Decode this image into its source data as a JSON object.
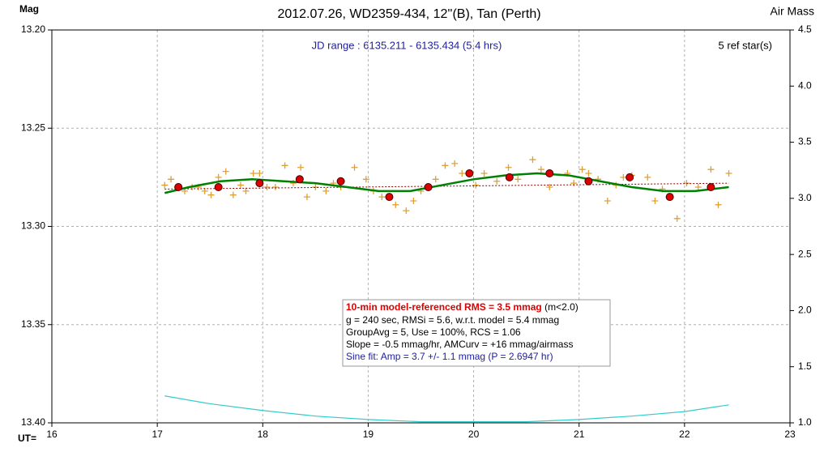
{
  "chart_data": {
    "type": "scatter",
    "title": "2012.07.26, WD2359-434, 12''(B), Tan (Perth)",
    "y_label": "Mag",
    "y2_label": "Air Mass",
    "x_label": "UT=",
    "annotations": {
      "jd_range": "JD range : 6135.211 - 6135.434 (5.4 hrs)",
      "ref_stars": "5 ref star(s)",
      "info": [
        [
          "10-min model-referenced RMS = 3.5 mmag",
          "(m<2.0)"
        ],
        "g = 240 sec, RMSi = 5.6, w.r.t. model = 5.4 mmag",
        "GroupAvg  = 5, Use = 100%, RCS = 1.06",
        "Slope = -0.5 mmag/hr, AMCurv  = +16 mmag/airmass",
        "Sine fit: Amp = 3.7 +/- 1.1 mmag (P = 2.6947  hr)"
      ]
    },
    "xlim": [
      16,
      23
    ],
    "xticks": [
      16,
      17,
      18,
      19,
      20,
      21,
      22,
      23
    ],
    "ylim": [
      13.2,
      13.4
    ],
    "y_inverted": true,
    "yticks": [
      {
        "value": 13.2,
        "label": "13.20"
      },
      {
        "value": 13.25,
        "label": "13.25"
      },
      {
        "value": 13.3,
        "label": "13.30"
      },
      {
        "value": 13.35,
        "label": "13.35"
      },
      {
        "value": 13.4,
        "label": "13.40"
      }
    ],
    "y2lim": [
      1.0,
      4.5
    ],
    "y2ticks": [
      {
        "value": 1.0,
        "label": "1.0"
      },
      {
        "value": 1.5,
        "label": "1.5"
      },
      {
        "value": 2.0,
        "label": "2.0"
      },
      {
        "value": 2.5,
        "label": "2.5"
      },
      {
        "value": 3.0,
        "label": "3.0"
      },
      {
        "value": 3.5,
        "label": "3.5"
      },
      {
        "value": 4.0,
        "label": "4.0"
      },
      {
        "value": 4.5,
        "label": "4.5"
      }
    ],
    "grid": true,
    "series": [
      {
        "marker": "plus",
        "color": "#e0a030",
        "x": [
          17.07,
          17.13,
          17.19,
          17.26,
          17.33,
          17.39,
          17.45,
          17.51,
          17.58,
          17.65,
          17.72,
          17.79,
          17.84,
          17.91,
          17.97,
          18.04,
          18.12,
          18.21,
          18.29,
          18.36,
          18.42,
          18.5,
          18.6,
          18.67,
          18.74,
          18.87,
          18.98,
          19.05,
          19.13,
          19.26,
          19.36,
          19.43,
          19.5,
          19.64,
          19.73,
          19.82,
          19.89,
          20.02,
          20.1,
          20.22,
          20.33,
          20.42,
          20.56,
          20.64,
          20.72,
          20.89,
          20.95,
          21.03,
          21.09,
          21.18,
          21.27,
          21.35,
          21.42,
          21.5,
          21.65,
          21.72,
          21.79,
          21.93,
          22.02,
          22.13,
          22.25,
          22.32,
          22.42
        ],
        "values": [
          13.279,
          13.276,
          13.28,
          13.282,
          13.28,
          13.28,
          13.282,
          13.284,
          13.275,
          13.272,
          13.284,
          13.279,
          13.282,
          13.273,
          13.273,
          13.28,
          13.28,
          13.269,
          13.278,
          13.27,
          13.285,
          13.28,
          13.282,
          13.278,
          13.28,
          13.27,
          13.276,
          13.282,
          13.285,
          13.289,
          13.292,
          13.287,
          13.282,
          13.276,
          13.269,
          13.268,
          13.273,
          13.279,
          13.273,
          13.277,
          13.27,
          13.276,
          13.266,
          13.271,
          13.28,
          13.273,
          13.278,
          13.271,
          13.273,
          13.276,
          13.287,
          13.279,
          13.275,
          13.274,
          13.275,
          13.287,
          13.281,
          13.296,
          13.278,
          13.28,
          13.271,
          13.289,
          13.273
        ]
      },
      {
        "marker": "dotted",
        "color": "#800000",
        "x": [
          17.07,
          22.42
        ],
        "values": [
          13.281,
          13.278
        ]
      },
      {
        "marker": "line",
        "color": "#008000",
        "x": [
          17.07,
          17.3,
          17.6,
          17.9,
          18.2,
          18.5,
          18.8,
          19.1,
          19.4,
          19.7,
          20.0,
          20.3,
          20.6,
          20.9,
          21.2,
          21.5,
          21.8,
          22.1,
          22.42
        ],
        "values": [
          13.283,
          13.28,
          13.277,
          13.276,
          13.277,
          13.278,
          13.28,
          13.282,
          13.282,
          13.279,
          13.276,
          13.274,
          13.273,
          13.274,
          13.277,
          13.28,
          13.282,
          13.282,
          13.28
        ]
      },
      {
        "marker": "circle",
        "color": "#dd0000",
        "x": [
          17.2,
          17.58,
          17.97,
          18.35,
          18.74,
          19.2,
          19.57,
          19.96,
          20.34,
          20.72,
          21.09,
          21.48,
          21.86,
          22.25
        ],
        "values": [
          13.28,
          13.28,
          13.278,
          13.276,
          13.277,
          13.285,
          13.28,
          13.273,
          13.275,
          13.273,
          13.277,
          13.275,
          13.285,
          13.28
        ]
      },
      {
        "marker": "line",
        "color": "#33cccc",
        "axis": "y2",
        "x": [
          17.07,
          17.5,
          18.0,
          18.5,
          19.0,
          19.5,
          20.0,
          20.5,
          21.0,
          21.5,
          22.0,
          22.42
        ],
        "values": [
          1.24,
          1.17,
          1.11,
          1.06,
          1.03,
          1.01,
          1.01,
          1.01,
          1.03,
          1.06,
          1.1,
          1.16
        ]
      }
    ]
  }
}
